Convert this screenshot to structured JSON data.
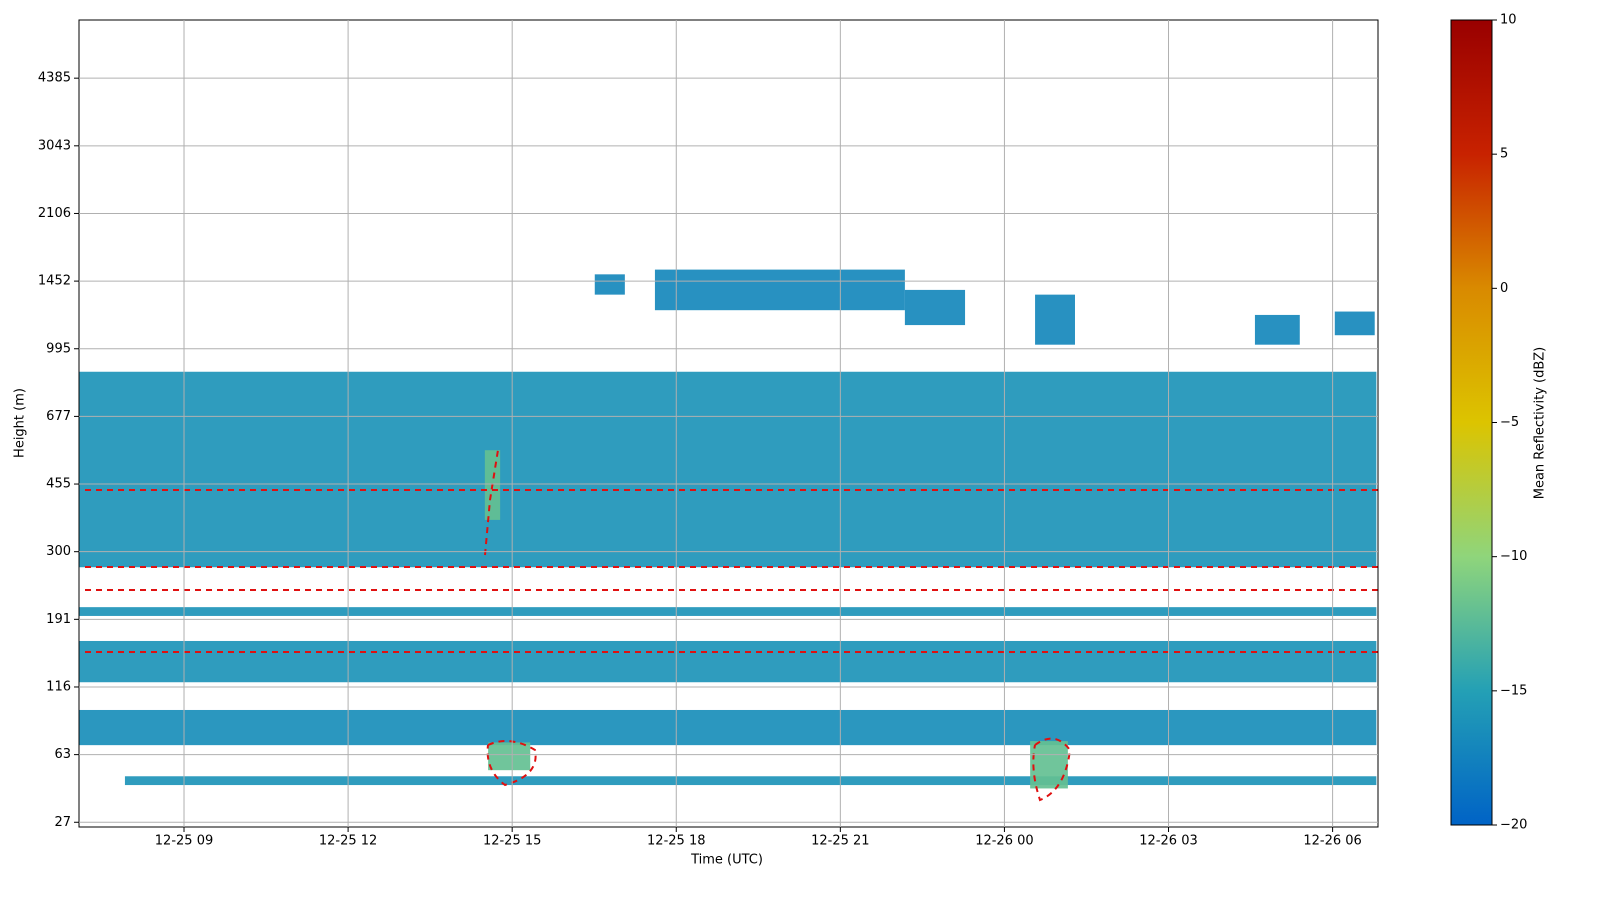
{
  "chart_data": {
    "type": "heatmap",
    "xlabel": "Time (UTC)",
    "ylabel": "Height (m)",
    "colorbar_label": "Mean Reflectivity (dBZ)",
    "xlim": [
      7.08,
      30.83
    ],
    "xticks": [
      {
        "value": 9,
        "label": "12-25 09"
      },
      {
        "value": 12,
        "label": "12-25 12"
      },
      {
        "value": 15,
        "label": "12-25 15"
      },
      {
        "value": 18,
        "label": "12-25 18"
      },
      {
        "value": 21,
        "label": "12-25 21"
      },
      {
        "value": 24,
        "label": "12-26 00"
      },
      {
        "value": 27,
        "label": "12-26 03"
      },
      {
        "value": 30,
        "label": "12-26 06"
      }
    ],
    "ylim": [
      -0.07,
      11.86
    ],
    "yticks": [
      {
        "value": 0,
        "label": "27"
      },
      {
        "value": 1,
        "label": "63"
      },
      {
        "value": 2,
        "label": "116"
      },
      {
        "value": 3,
        "label": "191"
      },
      {
        "value": 4,
        "label": "300"
      },
      {
        "value": 5,
        "label": "455"
      },
      {
        "value": 6,
        "label": "677"
      },
      {
        "value": 7,
        "label": "995"
      },
      {
        "value": 8,
        "label": "1452"
      },
      {
        "value": 9,
        "label": "2106"
      },
      {
        "value": 10,
        "label": "3043"
      },
      {
        "value": 11,
        "label": "4385"
      }
    ],
    "clim": [
      -20,
      10
    ],
    "cticks": [
      {
        "value": -20,
        "label": "−20"
      },
      {
        "value": -15,
        "label": "−15"
      },
      {
        "value": -10,
        "label": "−10"
      },
      {
        "value": -5,
        "label": "−5"
      },
      0,
      5,
      10
    ],
    "colormap": [
      "#0063c6",
      "#24a0b5",
      "#8fd57b",
      "#dcc400",
      "#d98a00",
      "#c82200",
      "#990000"
    ],
    "grid": true,
    "layers": [
      {
        "start": 7.08,
        "end": 30.8,
        "bottom": 3.77,
        "top": 6.66,
        "value": -16
      },
      {
        "start": 7.08,
        "end": 30.8,
        "bottom": 3.05,
        "top": 3.18,
        "value": -16
      },
      {
        "start": 7.08,
        "end": 30.8,
        "bottom": 2.07,
        "top": 2.68,
        "value": -16
      },
      {
        "start": 7.08,
        "end": 30.8,
        "bottom": 1.14,
        "top": 1.66,
        "value": -16.5
      },
      {
        "start": 7.92,
        "end": 30.8,
        "bottom": 0.55,
        "top": 0.68,
        "value": -16
      },
      {
        "start": 16.51,
        "end": 17.06,
        "bottom": 7.8,
        "top": 8.1,
        "value": -17
      },
      {
        "start": 17.61,
        "end": 22.18,
        "bottom": 7.57,
        "top": 8.17,
        "value": -17
      },
      {
        "start": 22.18,
        "end": 23.28,
        "bottom": 7.35,
        "top": 7.87,
        "value": -17
      },
      {
        "start": 24.56,
        "end": 25.29,
        "bottom": 7.06,
        "top": 7.8,
        "value": -17
      },
      {
        "start": 28.58,
        "end": 29.4,
        "bottom": 7.06,
        "top": 7.5,
        "value": -17
      },
      {
        "start": 30.04,
        "end": 30.77,
        "bottom": 7.2,
        "top": 7.55,
        "value": -17
      },
      {
        "start": 14.56,
        "end": 15.33,
        "bottom": 0.77,
        "top": 1.18,
        "value": -12
      },
      {
        "start": 24.47,
        "end": 25.16,
        "bottom": 0.5,
        "top": 1.2,
        "value": -12
      },
      {
        "start": 14.5,
        "end": 14.78,
        "bottom": 4.47,
        "top": 5.5,
        "value": -12
      }
    ]
  }
}
